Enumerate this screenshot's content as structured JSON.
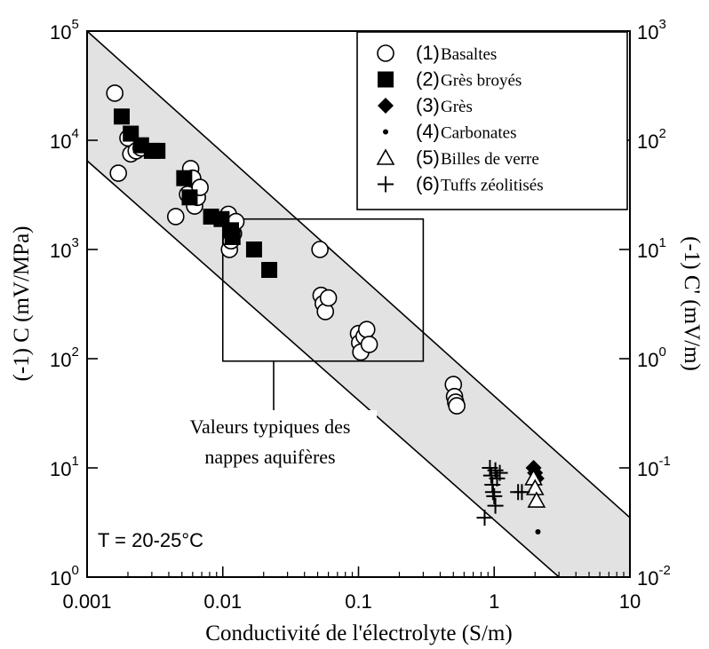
{
  "chart_data": {
    "type": "scatter",
    "x_scale": "log",
    "y_scale": "log",
    "xlabel": "Conductivité de l'électrolyte (S/m)",
    "ylabel_left": "(-1) C (mV/MPa)",
    "ylabel_right": "(-1) C' (mV/m)",
    "xlim": [
      0.001,
      10
    ],
    "ylim_left": [
      1,
      100000
    ],
    "ylim_right": [
      0.01,
      1000
    ],
    "x_ticks": [
      "0.001",
      "0.01",
      "0.1",
      "1",
      "10"
    ],
    "y_ticks_left": [
      {
        "base": "10",
        "exp": "0"
      },
      {
        "base": "10",
        "exp": "1"
      },
      {
        "base": "10",
        "exp": "2"
      },
      {
        "base": "10",
        "exp": "3"
      },
      {
        "base": "10",
        "exp": "4"
      },
      {
        "base": "10",
        "exp": "5"
      }
    ],
    "y_ticks_right": [
      {
        "base": "10",
        "exp": "-2"
      },
      {
        "base": "10",
        "exp": "-1"
      },
      {
        "base": "10",
        "exp": "0"
      },
      {
        "base": "10",
        "exp": "1"
      },
      {
        "base": "10",
        "exp": "2"
      },
      {
        "base": "10",
        "exp": "3"
      }
    ],
    "band": {
      "upper": [
        [
          0.001,
          100000
        ],
        [
          10,
          3.5
        ]
      ],
      "lower": [
        [
          0.001,
          6500
        ],
        [
          3,
          1
        ]
      ]
    },
    "box": {
      "x": [
        0.01,
        0.3
      ],
      "y": [
        95,
        1900
      ]
    },
    "annotations": {
      "box_label_line1": "Valeurs typiques des",
      "box_label_line2": "nappes aquifères",
      "temperature": "T = 20-25°C"
    },
    "legend": [
      {
        "number": "(1)",
        "label": "Basaltes",
        "marker": "circle-open"
      },
      {
        "number": "(2)",
        "label": "Grès broyés",
        "marker": "square-filled"
      },
      {
        "number": "(3)",
        "label": "Grès",
        "marker": "diamond-filled"
      },
      {
        "number": "(4)",
        "label": "Carbonates",
        "marker": "dot"
      },
      {
        "number": "(5)",
        "label": "Billes de verre",
        "marker": "triangle-open"
      },
      {
        "number": "(6)",
        "label": "Tuffs zéolitisés",
        "marker": "plus"
      }
    ],
    "series": [
      {
        "name": "Basaltes",
        "marker": "circle-open",
        "points": [
          [
            0.0016,
            27000
          ],
          [
            0.0017,
            5000
          ],
          [
            0.002,
            10500
          ],
          [
            0.0021,
            7500
          ],
          [
            0.0023,
            8000
          ],
          [
            0.0025,
            8500
          ],
          [
            0.0045,
            2000
          ],
          [
            0.0055,
            3200
          ],
          [
            0.0058,
            5500
          ],
          [
            0.006,
            4500
          ],
          [
            0.0062,
            2500
          ],
          [
            0.0065,
            3000
          ],
          [
            0.0068,
            3700
          ],
          [
            0.011,
            2100
          ],
          [
            0.0112,
            1000
          ],
          [
            0.0115,
            1200
          ],
          [
            0.012,
            1400
          ],
          [
            0.0125,
            1800
          ],
          [
            0.052,
            1000
          ],
          [
            0.053,
            380
          ],
          [
            0.055,
            320
          ],
          [
            0.057,
            270
          ],
          [
            0.06,
            360
          ],
          [
            0.1,
            170
          ],
          [
            0.102,
            140
          ],
          [
            0.104,
            115
          ],
          [
            0.11,
            160
          ],
          [
            0.115,
            185
          ],
          [
            0.12,
            135
          ],
          [
            0.5,
            58
          ],
          [
            0.51,
            45
          ],
          [
            0.52,
            40
          ],
          [
            0.53,
            37
          ]
        ]
      },
      {
        "name": "Grès broyés",
        "marker": "square-filled",
        "points": [
          [
            0.0018,
            16500
          ],
          [
            0.0021,
            11500
          ],
          [
            0.0025,
            9000
          ],
          [
            0.003,
            8000
          ],
          [
            0.0033,
            8000
          ],
          [
            0.0052,
            4500
          ],
          [
            0.0057,
            3000
          ],
          [
            0.0082,
            2000
          ],
          [
            0.0098,
            1900
          ],
          [
            0.0115,
            1500
          ],
          [
            0.0118,
            1300
          ],
          [
            0.017,
            1000
          ],
          [
            0.022,
            650
          ]
        ]
      },
      {
        "name": "Grès",
        "marker": "diamond-filled",
        "points": [
          [
            1.95,
            10
          ],
          [
            2.0,
            9
          ],
          [
            2.05,
            8
          ]
        ]
      },
      {
        "name": "Carbonates",
        "marker": "dot",
        "points": [
          [
            2.1,
            2.6
          ]
        ]
      },
      {
        "name": "Billes de verre",
        "marker": "triangle-open",
        "points": [
          [
            1.95,
            8
          ],
          [
            2.0,
            6.5
          ],
          [
            2.05,
            5
          ]
        ]
      },
      {
        "name": "Tuffs zéolitisés",
        "marker": "plus",
        "points": [
          [
            0.85,
            3.5
          ],
          [
            0.93,
            10
          ],
          [
            0.95,
            8.5
          ],
          [
            0.97,
            7
          ],
          [
            0.98,
            6
          ],
          [
            1.0,
            5.5
          ],
          [
            1.02,
            9.5
          ],
          [
            1.05,
            8
          ],
          [
            1.1,
            9
          ],
          [
            1.02,
            4.5
          ],
          [
            1.5,
            6
          ],
          [
            1.6,
            6
          ]
        ]
      }
    ]
  }
}
